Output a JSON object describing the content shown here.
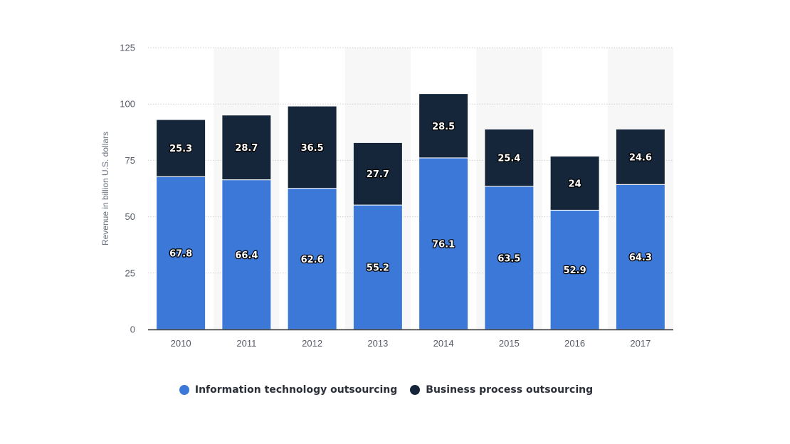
{
  "chart_data": {
    "type": "bar",
    "stacked": true,
    "categories": [
      "2010",
      "2011",
      "2012",
      "2013",
      "2014",
      "2015",
      "2016",
      "2017"
    ],
    "series": [
      {
        "name": "Information technology outsourcing",
        "color": "#3b78d8",
        "values": [
          67.8,
          66.4,
          62.6,
          55.2,
          76.1,
          63.5,
          52.9,
          64.3
        ]
      },
      {
        "name": "Business process outsourcing",
        "color": "#15263a",
        "values": [
          25.3,
          28.7,
          36.5,
          27.7,
          28.5,
          25.4,
          24,
          24.6
        ]
      }
    ],
    "ylabel": "Revenue in billion U.S. dollars",
    "ylim": [
      0,
      125
    ],
    "yticks": [
      0,
      25,
      50,
      75,
      100,
      125
    ],
    "grid": true,
    "legend_position": "bottom"
  }
}
